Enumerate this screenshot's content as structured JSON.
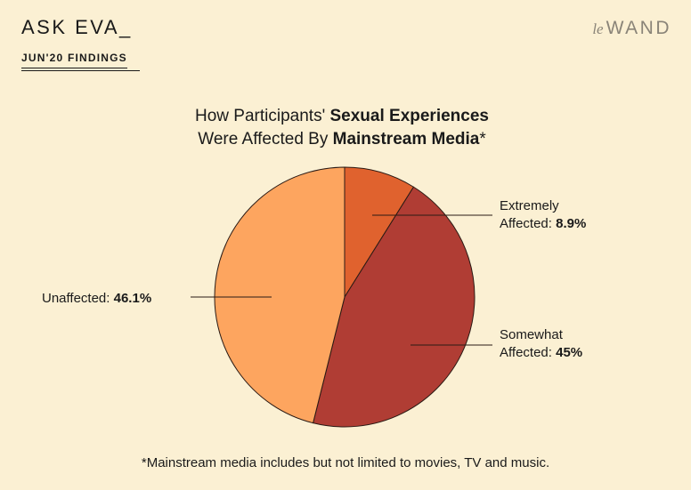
{
  "header": {
    "brand_title": "ASK EVA_",
    "brand_subtitle": "JUN'20 FINDINGS",
    "logo_prefix": "le",
    "logo_main": "WAND"
  },
  "chart_data": {
    "type": "pie",
    "title_parts": [
      {
        "text": "How Participants' ",
        "bold": false
      },
      {
        "text": "Sexual Experiences",
        "bold": true
      },
      {
        "text": "Were Affected By ",
        "bold": false,
        "newline": true
      },
      {
        "text": "Mainstream Media",
        "bold": true
      },
      {
        "text": "*",
        "bold": false
      }
    ],
    "slices": [
      {
        "label_line1": "Extremely",
        "label_line2": "Affected:",
        "value_label": "8.9%",
        "value": 8.9,
        "color": "#e0622e"
      },
      {
        "label_line1": "Somewhat",
        "label_line2": "Affected:",
        "value_label": "45%",
        "value": 45,
        "color": "#b03d34"
      },
      {
        "label_line1": "",
        "label_line2": "Unaffected:",
        "value_label": "46.1%",
        "value": 46.1,
        "color": "#fda55f"
      }
    ]
  },
  "footnote": "*Mainstream media includes but not limited to movies, TV and music."
}
